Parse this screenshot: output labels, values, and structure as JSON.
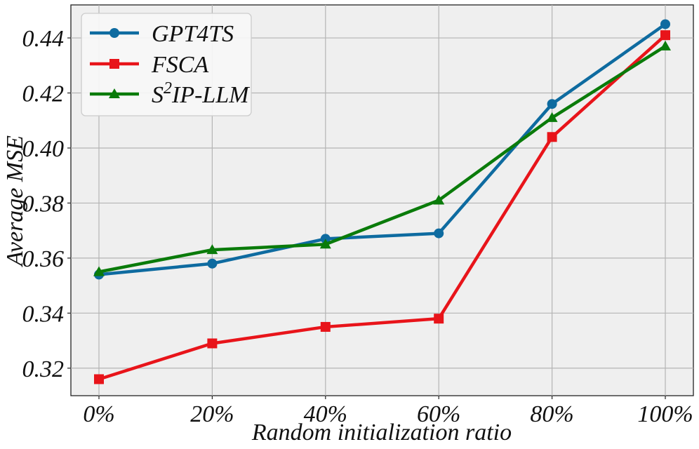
{
  "chart_data": {
    "type": "line",
    "categories": [
      "0%",
      "20%",
      "40%",
      "60%",
      "80%",
      "100%"
    ],
    "xlabel": "Random initialization ratio",
    "ylabel": "Average MSE",
    "ylim": [
      0.31,
      0.452
    ],
    "yticks": [
      0.32,
      0.34,
      0.36,
      0.38,
      0.4,
      0.42,
      0.44
    ],
    "ytick_labels": [
      "0.32",
      "0.34",
      "0.36",
      "0.38",
      "0.40",
      "0.42",
      "0.44"
    ],
    "grid": true,
    "legend_position": "top-left",
    "series": [
      {
        "name": "GPT4TS",
        "legend_label": "GPT4TS",
        "color": "#0e6ba0",
        "marker": "circle",
        "values": [
          0.354,
          0.358,
          0.367,
          0.369,
          0.416,
          0.445
        ]
      },
      {
        "name": "FSCA",
        "legend_label": "FSCA",
        "color": "#e8141a",
        "marker": "square",
        "values": [
          0.316,
          0.329,
          0.335,
          0.338,
          0.404,
          0.441
        ]
      },
      {
        "name": "S2IP-LLM",
        "legend_base": "S",
        "legend_sup": "2",
        "legend_rest": "IP-LLM",
        "color": "#0a7b0a",
        "marker": "triangle",
        "values": [
          0.355,
          0.363,
          0.365,
          0.381,
          0.411,
          0.437
        ]
      }
    ]
  }
}
